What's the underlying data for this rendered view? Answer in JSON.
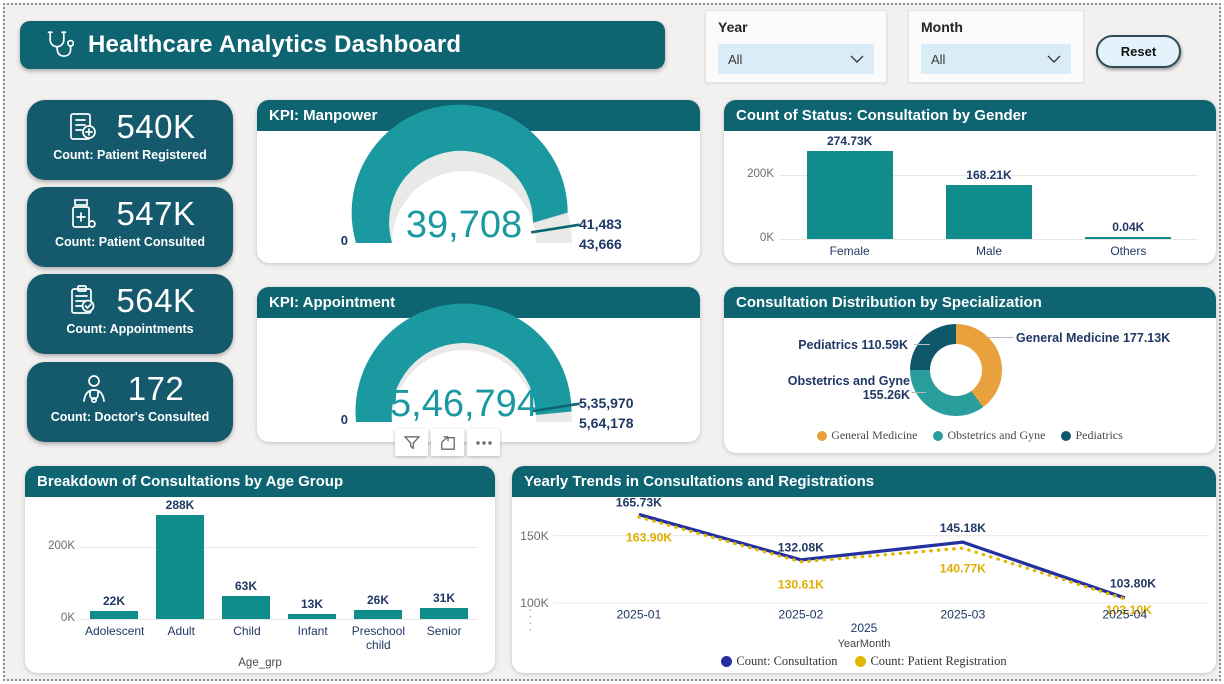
{
  "header": {
    "title": "Healthcare Analytics Dashboard"
  },
  "filters": {
    "year_label": "Year",
    "year_value": "All",
    "month_label": "Month",
    "month_value": "All",
    "reset_label": "Reset"
  },
  "kpi_cards": [
    {
      "value": "540K",
      "label": "Count: Patient Registered",
      "icon": "patient-registered-icon"
    },
    {
      "value": "547K",
      "label": "Count: Patient Consulted",
      "icon": "medicine-bottle-icon"
    },
    {
      "value": "564K",
      "label": "Count: Appointments",
      "icon": "appointment-clipboard-icon"
    },
    {
      "value": "172",
      "label": "Count: Doctor's Consulted",
      "icon": "doctor-icon"
    }
  ],
  "hover_toolbar": {
    "icons": [
      "filter-icon",
      "focus-mode-icon",
      "more-options-icon"
    ]
  },
  "colors": {
    "panel_header": "#0E6471",
    "kpi_card": "#15596C",
    "bar_teal": "#118C8C",
    "gauge_teal": "#1A9AA0",
    "gauge_track": "#E9E9E7",
    "navy_label": "#1F3864",
    "line_blue": "#2430A0",
    "line_gold": "#E2B500",
    "orange": "#E8A13C",
    "donut_teal": "#2A9D9D",
    "donut_dark": "#0F586B"
  },
  "chart_data": [
    {
      "type": "gauge",
      "title": "KPI: Manpower",
      "min": 0,
      "max": 43666,
      "value": 39708,
      "target": 41483,
      "min_label": "0",
      "value_label": "39,708",
      "target_label": "41,483",
      "max_label": "43,666"
    },
    {
      "type": "gauge",
      "title": "KPI: Appointment",
      "min": 0,
      "max": 564178,
      "value": 546794,
      "target": 535970,
      "min_label": "0",
      "value_label": "5,46,794",
      "target_label": "5,35,970",
      "max_label": "5,64,178"
    },
    {
      "type": "bar",
      "title": "Count of Status: Consultation by Gender",
      "categories": [
        "Female",
        "Male",
        "Others"
      ],
      "values": [
        274730,
        168210,
        40
      ],
      "value_labels": [
        "274.73K",
        "168.21K",
        "0.04K"
      ],
      "ylim": [
        0,
        300000
      ],
      "yticks": [
        {
          "value": 0,
          "label": "0K"
        },
        {
          "value": 200000,
          "label": "200K"
        }
      ]
    },
    {
      "type": "pie",
      "title": "Consultation Distribution by Specialization",
      "slices": [
        {
          "name": "General Medicine",
          "value": 177130,
          "callout": "General Medicine 177.13K",
          "color": "#E8A13C"
        },
        {
          "name": "Obstetrics and Gyne",
          "value": 155260,
          "callout": "Obstetrics and Gyne 155.26K",
          "callout_lines": [
            "Obstetrics and Gyne",
            "155.26K"
          ],
          "color": "#2A9D9D"
        },
        {
          "name": "Pediatrics",
          "value": 110590,
          "callout": "Pediatrics 110.59K",
          "color": "#0F586B"
        }
      ],
      "legend": [
        "General Medicine",
        "Obstetrics and Gyne",
        "Pediatrics"
      ]
    },
    {
      "type": "bar",
      "title": "Breakdown of Consultations by Age Group",
      "categories": [
        "Adolescent",
        "Adult",
        "Child",
        "Infant",
        "Preschool child",
        "Senior"
      ],
      "values": [
        22000,
        288000,
        63000,
        13000,
        26000,
        31000
      ],
      "value_labels": [
        "22K",
        "288K",
        "63K",
        "13K",
        "26K",
        "31K"
      ],
      "ylim": [
        0,
        300000
      ],
      "yticks": [
        {
          "value": 0,
          "label": "0K"
        },
        {
          "value": 200000,
          "label": "200K"
        }
      ],
      "xlabel": "Age_grp"
    },
    {
      "type": "line",
      "title": "Yearly Trends in Consultations and Registrations",
      "x": [
        "2025-01",
        "2025-02",
        "2025-03",
        "2025-04"
      ],
      "x_group_label": "2025",
      "xlabel": "YearMonth",
      "ylim": [
        95000,
        172000
      ],
      "yticks": [
        {
          "value": 150000,
          "label": "150K"
        },
        {
          "value": 100000,
          "label": "100K"
        }
      ],
      "series": [
        {
          "name": "Count: Consultation",
          "color": "#2430A0",
          "style": "solid",
          "values": [
            165730,
            132080,
            145180,
            103800
          ],
          "value_labels": [
            "165.73K",
            "132.08K",
            "145.18K",
            "103.80K"
          ]
        },
        {
          "name": "Count: Patient Registration",
          "color": "#E2B500",
          "style": "dotted",
          "values": [
            163900,
            130610,
            140770,
            103100
          ],
          "value_labels": [
            "163.90K",
            "130.61K",
            "140.77K",
            "103.10K"
          ]
        }
      ],
      "legend_position": "bottom"
    }
  ]
}
